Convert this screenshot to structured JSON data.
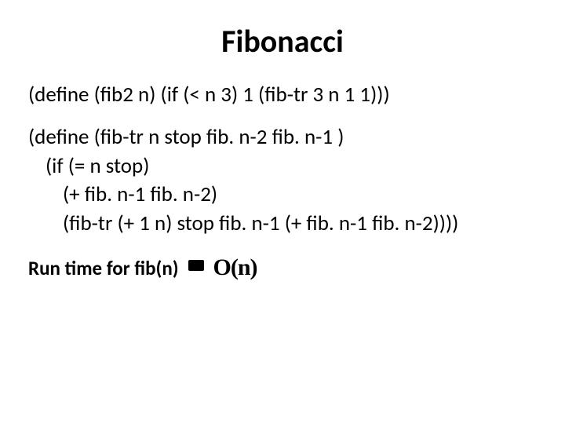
{
  "title": "Fibonacci",
  "code": {
    "line1": "(define (fib2 n)   (if (< n 3) 1 (fib-tr 3 n 1 1)))",
    "line2": "(define (fib-tr n stop fib. n-2 fib. n-1 )",
    "line3": "(if (= n stop)",
    "line4": "(+ fib. n-1 fib. n-2)",
    "line5": "(fib-tr (+ 1 n) stop fib. n-1  (+ fib. n-1 fib. n-2))))"
  },
  "runtime": {
    "label": "Run time for fib(n)",
    "complexity": "O(n)"
  },
  "styling": {
    "title_fontsize": 40,
    "body_fontsize": 27,
    "text_color": "#000000",
    "background_color": "#ffffff",
    "font_family": "Calibri"
  }
}
